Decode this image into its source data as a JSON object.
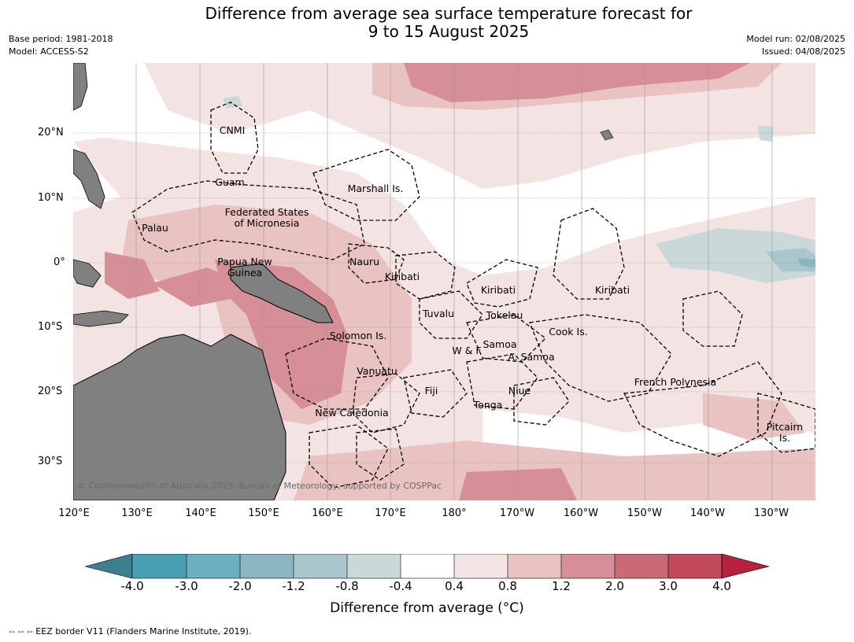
{
  "title_line1": "Difference from average sea surface temperature forecast for",
  "title_line2": "9 to 15 August 2025",
  "meta_left": [
    "Base period: 1981-2018",
    "Model: ACCESS-S2"
  ],
  "meta_right": [
    "Model run: 02/08/2025",
    "Issued: 04/08/2025"
  ],
  "lat_labels": [
    "20°N",
    "10°N",
    "0°",
    "10°S",
    "20°S",
    "30°S"
  ],
  "lon_labels": [
    "120°E",
    "130°E",
    "140°E",
    "150°E",
    "160°E",
    "170°E",
    "180°",
    "170°W",
    "160°W",
    "150°W",
    "140°W",
    "130°W"
  ],
  "regions": [
    "CNMI",
    "Guam",
    "Marshall Is.",
    "Federated States",
    "of Micronesia",
    "Palau",
    "Papua New",
    "Guinea",
    "Nauru",
    "Kiribati",
    "Kiribati",
    "Kiribati",
    "Tuvalu",
    "Tokelau",
    "Solomon Is.",
    "Samoa",
    "W & F",
    "A. Samoa",
    "Cook Is.",
    "Vanuatu",
    "Fiji",
    "Niue",
    "French Polynesia",
    "Tonga",
    "New Caledonia",
    "Pitcairn",
    "Is."
  ],
  "copyright": "© Commonwealth of Australia 2025, Bureau of Meteorology, supported by COSPPac",
  "colorbar": {
    "ticks": [
      "-4.0",
      "-3.0",
      "-2.0",
      "-1.2",
      "-0.8",
      "-0.4",
      "0.4",
      "0.8",
      "1.2",
      "2.0",
      "3.0",
      "4.0"
    ],
    "colors": [
      "#3d7f8e",
      "#4aa0b3",
      "#6eafbf",
      "#8ab5c1",
      "#a9c6cc",
      "#cbd8da",
      "#ffffff",
      "#f3e4e3",
      "#e8c3c1",
      "#d68f96",
      "#c96a77",
      "#c14b5b",
      "#b5223f"
    ],
    "title": "Difference from average (°C)"
  },
  "eez_note": "-- -- -- EEZ border V11 (Flanders Marine Institute, 2019)."
}
